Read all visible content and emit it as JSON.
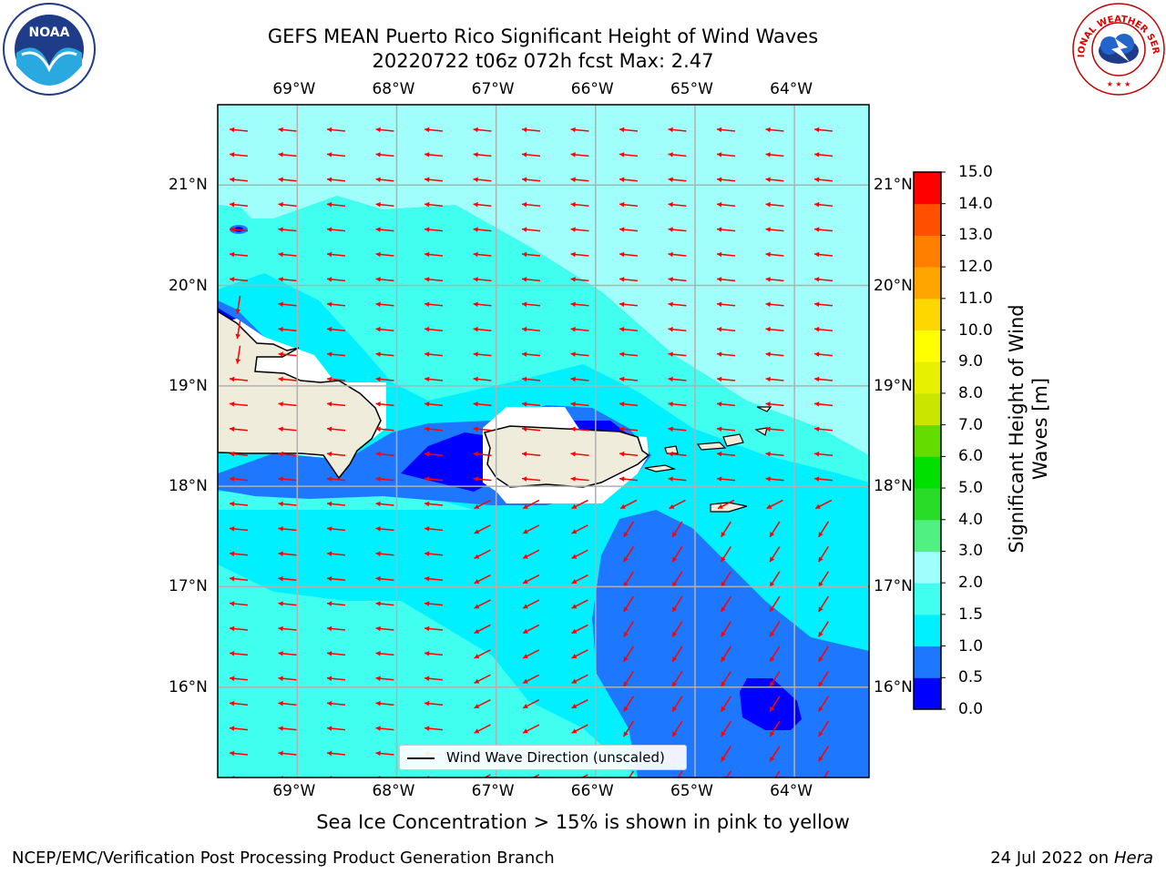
{
  "title_line1": "GEFS MEAN Puerto Rico Significant Height of Wind Waves",
  "title_line2": "20220722 t06z 072h fcst   Max: 2.47",
  "logos": {
    "left": "NOAA",
    "right": "NATIONAL WEATHER SERVICE"
  },
  "map": {
    "lon_ticks": [
      "69°W",
      "68°W",
      "67°W",
      "66°W",
      "65°W",
      "64°W"
    ],
    "lat_ticks": [
      "21°N",
      "20°N",
      "19°N",
      "18°N",
      "17°N",
      "16°N"
    ],
    "extent": {
      "lon": [
        -69.8,
        -63.25
      ],
      "lat": [
        15.1,
        21.8
      ]
    },
    "land_color": "#efecdc",
    "arrow_color": "#ff0000",
    "grid": true
  },
  "colorbar": {
    "title": "Significant Height of Wind Waves [m]",
    "levels": [
      "0.0",
      "0.5",
      "1.0",
      "1.5",
      "2.0",
      "3.0",
      "4.0",
      "5.0",
      "6.0",
      "7.0",
      "8.0",
      "9.0",
      "10.0",
      "11.0",
      "12.0",
      "13.0",
      "14.0",
      "15.0"
    ],
    "colors": [
      "#0000ff",
      "#1e78ff",
      "#00f0ff",
      "#40ffee",
      "#a0fffa",
      "#50f082",
      "#28dc28",
      "#00e000",
      "#64dc00",
      "#c8e600",
      "#e6f000",
      "#ffff00",
      "#ffd700",
      "#ffa500",
      "#ff7f00",
      "#ff5000",
      "#ff0000"
    ]
  },
  "legend_label": "Wind Wave Direction (unscaled)",
  "note": "Sea Ice Concentration > 15% is shown in pink to yellow",
  "footer_left": "NCEP/EMC/Verification Post Processing Product Generation Branch",
  "footer_right_text": "24 Jul 2022 on ",
  "footer_right_host": "Hera"
}
